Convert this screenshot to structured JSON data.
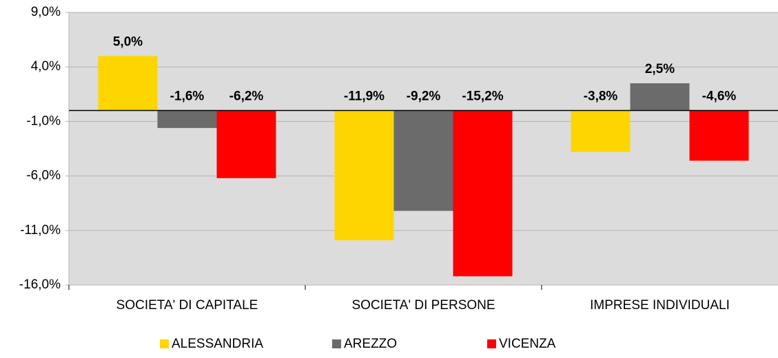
{
  "chart_data": {
    "type": "bar",
    "categories": [
      "SOCIETA' DI CAPITALE",
      "SOCIETA' DI PERSONE",
      "IMPRESE INDIVIDUALI"
    ],
    "series": [
      {
        "name": "ALESSANDRIA",
        "color": "#ffd500",
        "values": [
          5.0,
          -11.9,
          -3.8
        ],
        "value_labels": [
          "5,0%",
          "-11,9%",
          "-3,8%"
        ]
      },
      {
        "name": "AREZZO",
        "color": "#6b6b6b",
        "values": [
          -1.6,
          -9.2,
          2.5
        ],
        "value_labels": [
          "-1,6%",
          "-9,2%",
          "2,5%"
        ]
      },
      {
        "name": "VICENZA",
        "color": "#ff0000",
        "values": [
          -6.2,
          -15.2,
          -4.6
        ],
        "value_labels": [
          "-6,2%",
          "-15,2%",
          "-4,6%"
        ]
      }
    ],
    "ylim": [
      -16,
      9
    ],
    "yticks": [
      {
        "value": 9,
        "label": "9,0%"
      },
      {
        "value": 4,
        "label": "4,0%"
      },
      {
        "value": -1,
        "label": "-1,0%"
      },
      {
        "value": -6,
        "label": "-6,0%"
      },
      {
        "value": -11,
        "label": "-11,0%"
      },
      {
        "value": -16,
        "label": "-16,0%"
      }
    ],
    "grid": true,
    "legend": "bottom"
  }
}
